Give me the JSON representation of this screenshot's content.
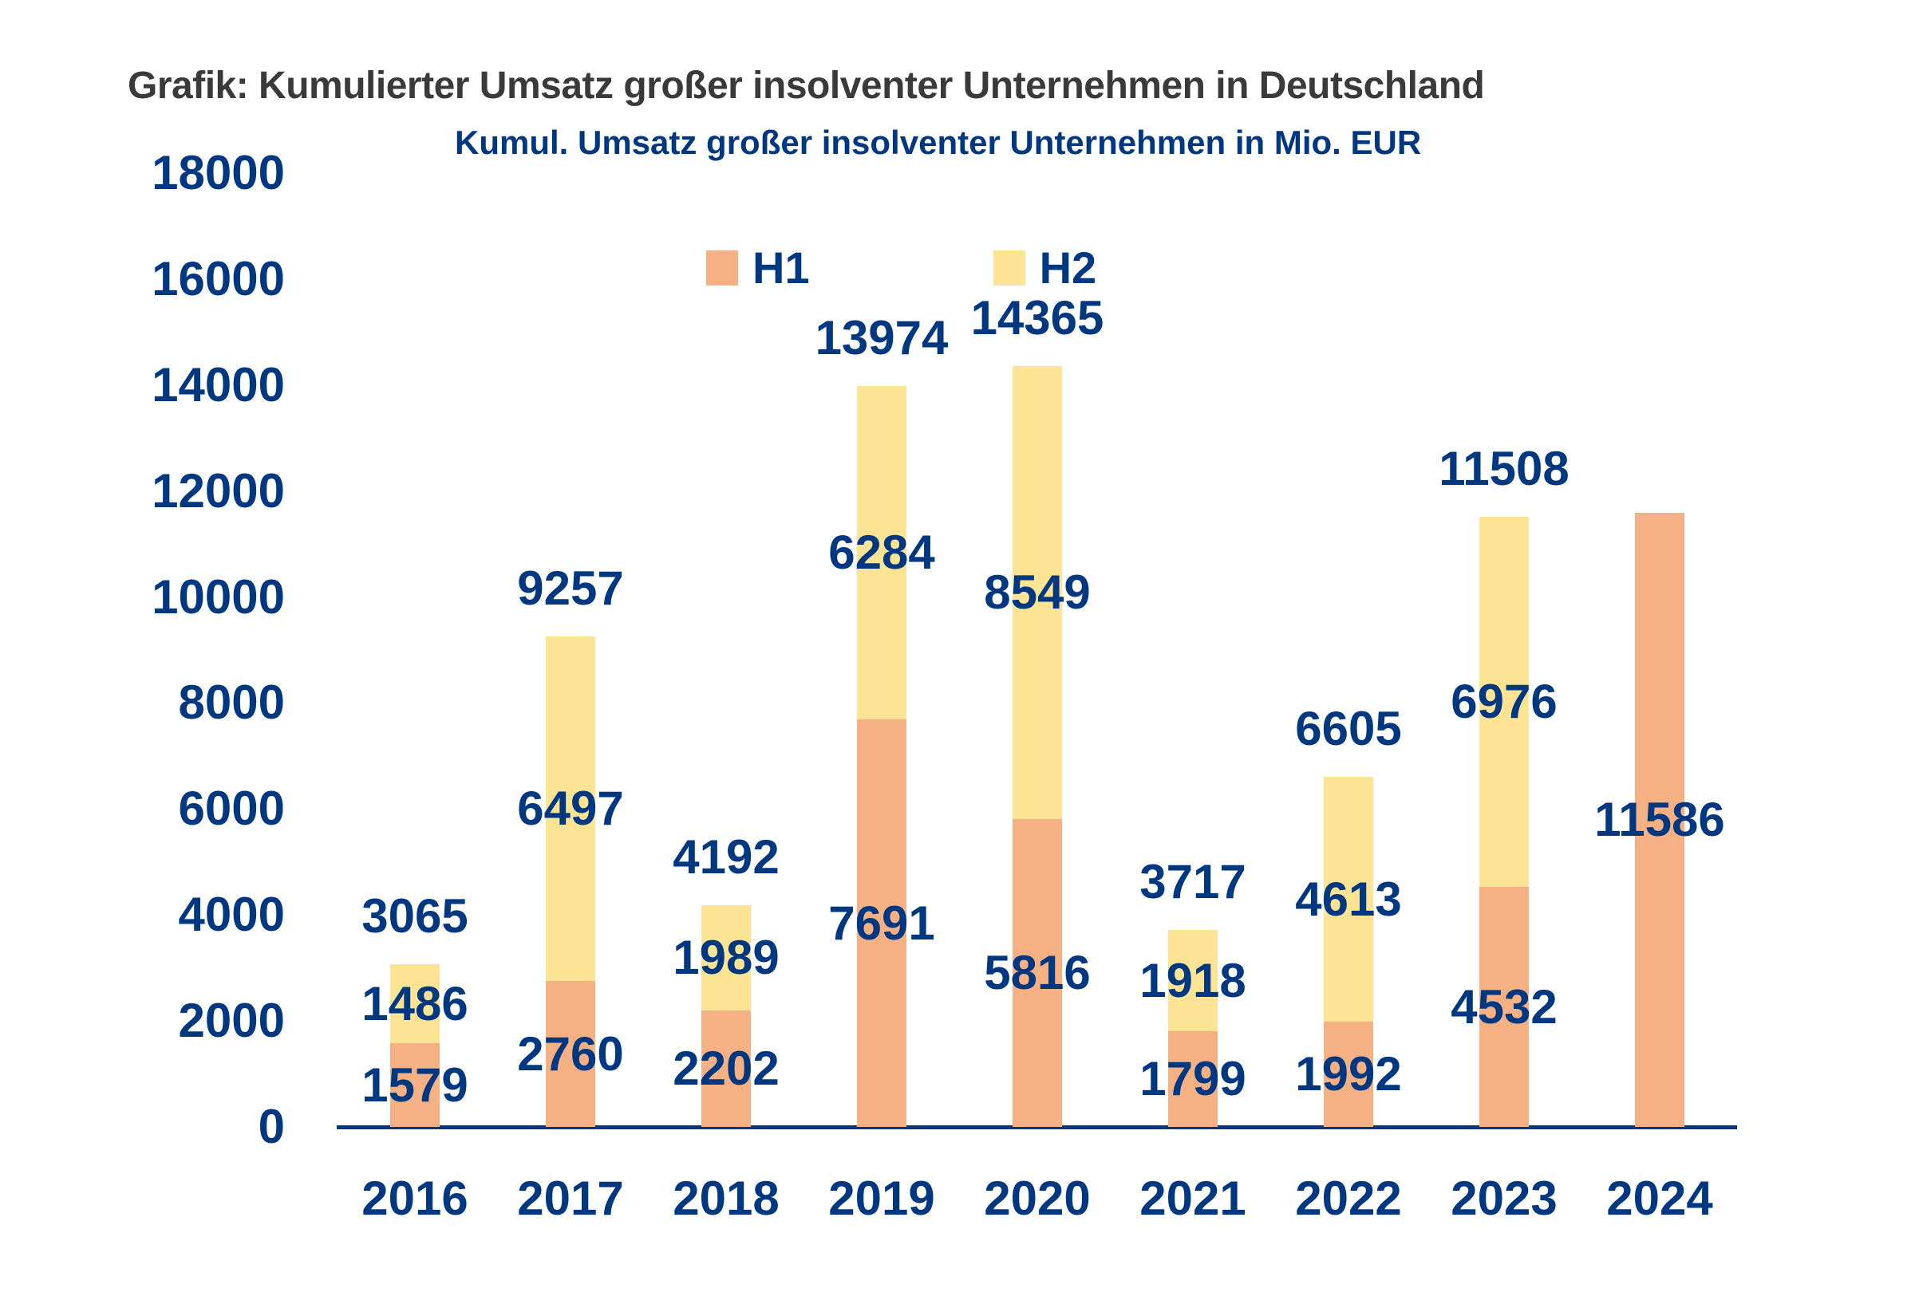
{
  "title": {
    "text": "Grafik: Kumulierter Umsatz großer insolventer Unternehmen in Deutschland",
    "color": "#3A3A3A"
  },
  "subtitle": {
    "text": "Kumul. Umsatz großer insolventer Unternehmen in Mio. EUR"
  },
  "colors": {
    "navy_text": "#003781",
    "axis_line": "#003781",
    "h1_orange": "#F5B183",
    "h2_yellow": "#FCE494",
    "background": "#FFFFFF"
  },
  "chart_data": {
    "type": "bar",
    "stacked": true,
    "title": "Grafik: Kumulierter Umsatz großer insolventer Unternehmen in Deutschland",
    "subtitle": "Kumul. Umsatz großer insolventer Unternehmen in Mio. EUR",
    "categories": [
      "2016",
      "2017",
      "2018",
      "2019",
      "2020",
      "2021",
      "2022",
      "2023",
      "2024"
    ],
    "series": [
      {
        "name": "H1",
        "color": "#F5B183",
        "values": [
          1579,
          2760,
          2202,
          7691,
          5816,
          1799,
          1992,
          4532,
          11586
        ]
      },
      {
        "name": "H2",
        "color": "#FCE494",
        "values": [
          1486,
          6497,
          1989,
          6284,
          8549,
          1918,
          4613,
          6976,
          null
        ]
      }
    ],
    "total_labels": [
      3065,
      9257,
      4192,
      13974,
      14365,
      3717,
      6605,
      11508,
      null
    ],
    "y_axis": {
      "min": 0,
      "max": 18000,
      "step": 2000
    },
    "legend_position": "top",
    "grid": false,
    "value_labels_shown": true
  }
}
